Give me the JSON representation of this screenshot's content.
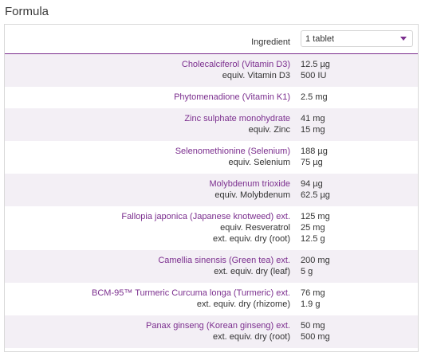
{
  "heading": "Formula",
  "header": {
    "ingredient_label": "Ingredient",
    "serving_select": {
      "value": "1 tablet",
      "icon": "caret-down-icon"
    }
  },
  "colors": {
    "accent": "#7b2e8e",
    "row_shade": "#f3eff5",
    "text": "#333333",
    "border": "#d9d9d9"
  },
  "ingredients": [
    {
      "shaded": true,
      "lines": [
        {
          "name": "Cholecalciferol (Vitamin D3)",
          "amount": "12.5 µg",
          "primary": true
        },
        {
          "name": "equiv. Vitamin D3",
          "amount": "500 IU",
          "primary": false
        }
      ]
    },
    {
      "shaded": false,
      "lines": [
        {
          "name": "Phytomenadione (Vitamin K1)",
          "amount": "2.5 mg",
          "primary": true
        }
      ]
    },
    {
      "shaded": true,
      "lines": [
        {
          "name": "Zinc sulphate monohydrate",
          "amount": "41 mg",
          "primary": true
        },
        {
          "name": "equiv. Zinc",
          "amount": "15 mg",
          "primary": false
        }
      ]
    },
    {
      "shaded": false,
      "lines": [
        {
          "name": "Selenomethionine (Selenium)",
          "amount": "188 µg",
          "primary": true
        },
        {
          "name": "equiv. Selenium",
          "amount": "75 µg",
          "primary": false
        }
      ]
    },
    {
      "shaded": true,
      "lines": [
        {
          "name": "Molybdenum trioxide",
          "amount": "94 µg",
          "primary": true
        },
        {
          "name": "equiv. Molybdenum",
          "amount": "62.5 µg",
          "primary": false
        }
      ]
    },
    {
      "shaded": false,
      "lines": [
        {
          "name": "Fallopia japonica (Japanese knotweed) ext.",
          "amount": "125 mg",
          "primary": true
        },
        {
          "name": "equiv. Resveratrol",
          "amount": "25 mg",
          "primary": false
        },
        {
          "name": "ext. equiv. dry (root)",
          "amount": "12.5 g",
          "primary": false
        }
      ]
    },
    {
      "shaded": true,
      "lines": [
        {
          "name": "Camellia sinensis (Green tea) ext.",
          "amount": "200 mg",
          "primary": true
        },
        {
          "name": "ext. equiv. dry (leaf)",
          "amount": "5 g",
          "primary": false
        }
      ]
    },
    {
      "shaded": false,
      "lines": [
        {
          "name": "BCM-95™ Turmeric Curcuma longa (Turmeric) ext.",
          "amount": "76 mg",
          "primary": true
        },
        {
          "name": "ext. equiv. dry (rhizome)",
          "amount": "1.9 g",
          "primary": false
        }
      ]
    },
    {
      "shaded": true,
      "lines": [
        {
          "name": "Panax ginseng (Korean ginseng) ext.",
          "amount": "50 mg",
          "primary": true
        },
        {
          "name": "ext. equiv. dry (root)",
          "amount": "500 mg",
          "primary": false
        }
      ]
    }
  ]
}
